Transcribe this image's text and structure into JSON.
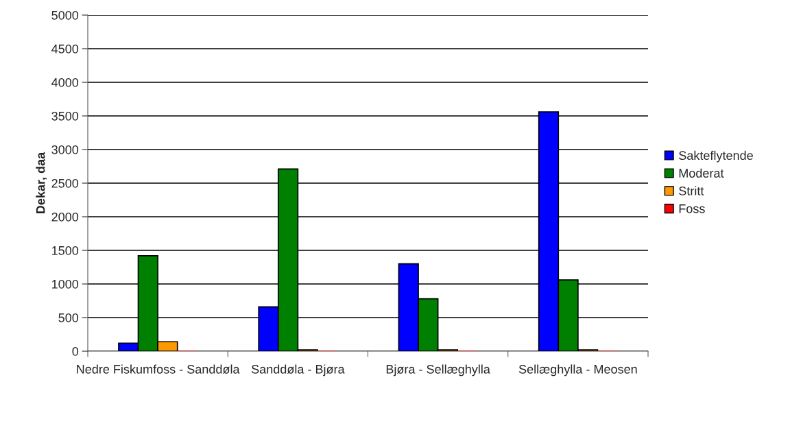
{
  "chart_data": {
    "type": "bar",
    "ylabel": "Dekar, daa",
    "categories": [
      "Nedre Fiskumfoss - Sanddøla",
      "Sanddøla - Bjøra",
      "Bjøra - Sellæghylla",
      "Sellæghylla - Meosen"
    ],
    "series": [
      {
        "name": "Sakteflytende",
        "color": "#0000ff",
        "values": [
          120,
          660,
          1300,
          3560
        ]
      },
      {
        "name": "Moderat",
        "color": "#008000",
        "values": [
          1420,
          2710,
          780,
          1060
        ]
      },
      {
        "name": "Stritt",
        "color": "#ff9900",
        "values": [
          140,
          20,
          20,
          20
        ]
      },
      {
        "name": "Foss",
        "color": "#ff0000",
        "values": [
          0,
          0,
          0,
          0
        ]
      }
    ],
    "ylim": [
      0,
      5000
    ],
    "yticks": [
      0,
      500,
      1000,
      1500,
      2000,
      2500,
      3000,
      3500,
      4000,
      4500,
      5000
    ],
    "grid": "y",
    "legend": "right"
  }
}
